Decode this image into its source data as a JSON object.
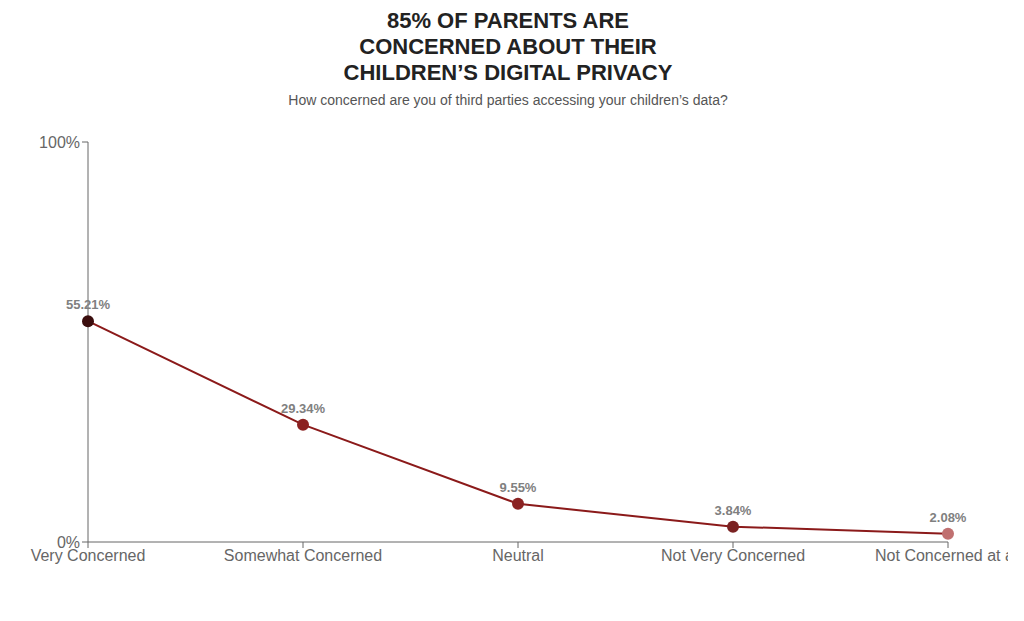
{
  "chart_data": {
    "type": "line",
    "title": "85% OF PARENTS ARE\nCONCERNED ABOUT THEIR\nCHILDREN’S DIGITAL PRIVACY",
    "subtitle": "How concerned are you of third parties accessing your children’s data?",
    "categories": [
      "Very Concerned",
      "Somewhat Concerned",
      "Neutral",
      "Not Very Concerned",
      "Not Concerned at all"
    ],
    "values": [
      55.21,
      29.34,
      9.55,
      3.84,
      2.08
    ],
    "value_labels": [
      "55.21%",
      "29.34%",
      "9.55%",
      "3.84%",
      "2.08%"
    ],
    "data_labels": true,
    "color": "#8b1a1a",
    "colors": [
      "#3a0d0d",
      "#8b2222",
      "#8b2222",
      "#7a2222",
      "#c07070"
    ],
    "ylim": [
      0,
      100
    ],
    "yticks": [
      {
        "value": 0,
        "label": "0%"
      },
      {
        "value": 100,
        "label": "100%"
      }
    ],
    "grid": false
  }
}
